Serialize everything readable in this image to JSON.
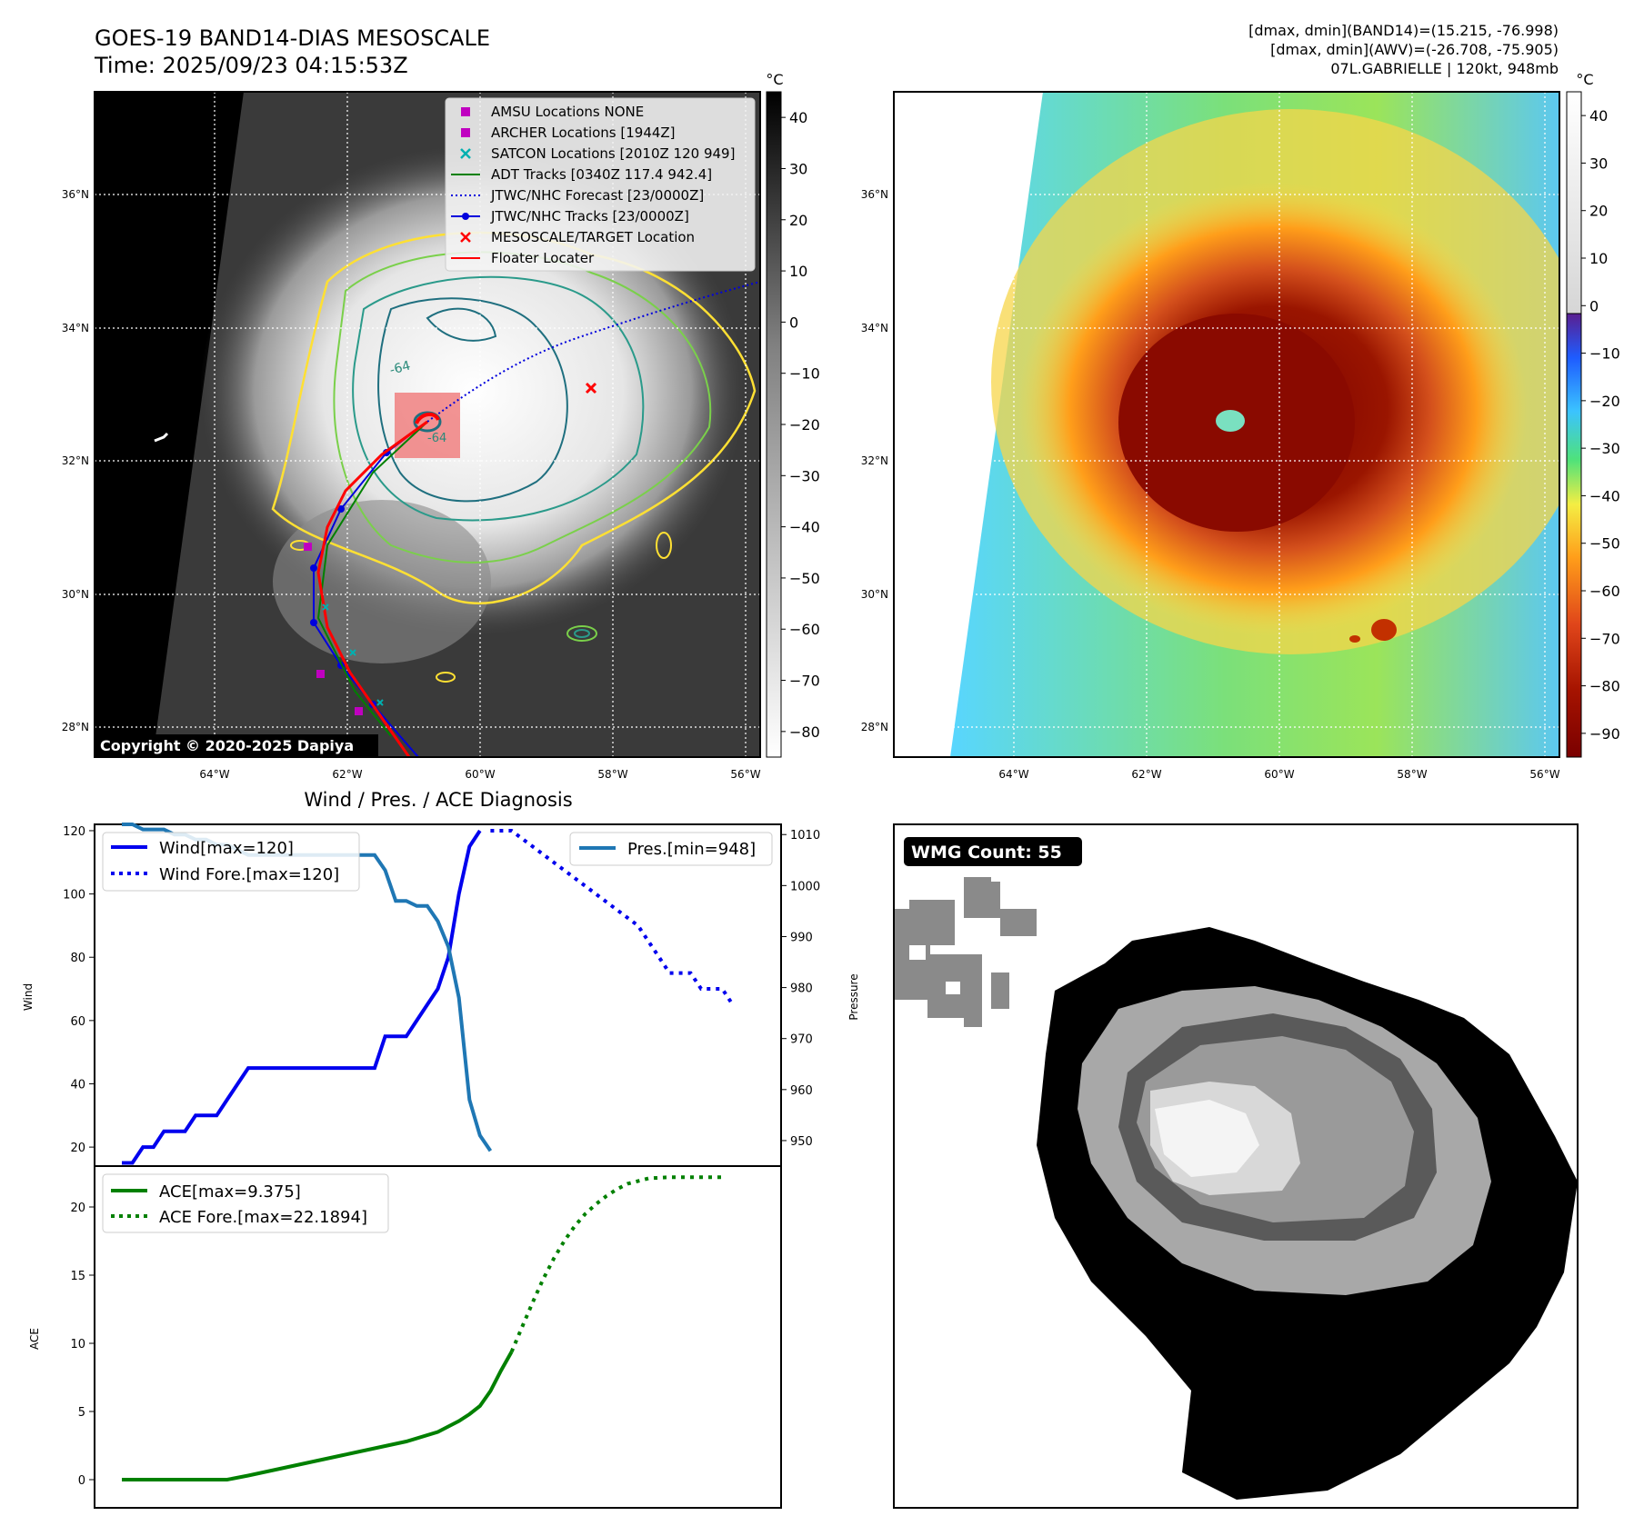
{
  "header": {
    "title": "GOES-19 BAND14-DIAS MESOSCALE",
    "time": "Time: 2025/09/23 04:15:53Z",
    "info_line1": "[dmax, dmin](BAND14)=(15.215, -76.998)",
    "info_line2": "[dmax, dmin](AWV)=(-26.708, -75.905)",
    "info_line3": "07L.GABRIELLE | 120kt, 948mb"
  },
  "copyright": "Copyright © 2020-2025 Dapiya",
  "map_axes": {
    "lon_labels": [
      "64°W",
      "62°W",
      "60°W",
      "58°W",
      "56°W"
    ],
    "lat_labels": [
      "36°N",
      "34°N",
      "32°N",
      "30°N",
      "28°N"
    ],
    "contour_labels": [
      "-64",
      "-64"
    ]
  },
  "legend_ir": [
    {
      "label": "AMSU Locations NONE",
      "marker": "square",
      "color": "#c000c0"
    },
    {
      "label": "ARCHER Locations [1944Z]",
      "marker": "square",
      "color": "#c000c0"
    },
    {
      "label": "SATCON Locations [2010Z 120 949]",
      "marker": "x",
      "color": "#00b0b0"
    },
    {
      "label": "ADT Tracks [0340Z 117.4 942.4]",
      "marker": "line",
      "color": "#008000"
    },
    {
      "label": "JTWC/NHC Forecast [23/0000Z]",
      "marker": "dotted",
      "color": "#0000dd"
    },
    {
      "label": "JTWC/NHC Tracks [23/0000Z]",
      "marker": "linedot",
      "color": "#0000dd"
    },
    {
      "label": "MESOSCALE/TARGET Location",
      "marker": "x",
      "color": "#ff0000"
    },
    {
      "label": "Floater Locater",
      "marker": "line",
      "color": "#ff0000"
    }
  ],
  "colorbar_ir": {
    "unit": "°C",
    "ticks": [
      "40",
      "30",
      "20",
      "10",
      "0",
      "−10",
      "−20",
      "−30",
      "−40",
      "−50",
      "−60",
      "−70",
      "−80"
    ]
  },
  "colorbar_awv": {
    "unit": "°C",
    "ticks": [
      "40",
      "30",
      "20",
      "10",
      "0",
      "−10",
      "−20",
      "−30",
      "−40",
      "−50",
      "−60",
      "−70",
      "−80",
      "−90"
    ]
  },
  "wmg": {
    "label": "WMG Count: 55"
  },
  "chart_data": [
    {
      "type": "line",
      "title": "Wind / Pres. / ACE Diagnosis",
      "ylabel": "Wind",
      "ylabel_right": "Pressure",
      "ylim": [
        14,
        122
      ],
      "ylim_right": [
        945,
        1012
      ],
      "yticks": [
        20,
        40,
        60,
        80,
        100,
        120
      ],
      "yticks_right": [
        950,
        960,
        970,
        980,
        990,
        1000,
        1010
      ],
      "xlim": [
        0,
        60
      ],
      "series": [
        {
          "name": "Wind[max=120]",
          "style": "solid",
          "color": "#0000ee",
          "axis": "left",
          "x": [
            0,
            1,
            2,
            3,
            4,
            5,
            6,
            7,
            8,
            9,
            10,
            11,
            12,
            13,
            14,
            15,
            16,
            17,
            18,
            19,
            20,
            21,
            22,
            23,
            24,
            25,
            26,
            27,
            28,
            29,
            30,
            31,
            32,
            33,
            34,
            35,
            36,
            37
          ],
          "y": [
            15,
            15,
            20,
            20,
            25,
            25,
            25,
            30,
            30,
            30,
            35,
            40,
            45,
            45,
            45,
            45,
            45,
            45,
            45,
            45,
            45,
            45,
            45,
            45,
            45,
            55,
            55,
            55,
            60,
            65,
            70,
            80,
            100,
            115,
            120,
            null,
            null,
            null
          ]
        },
        {
          "name": "Wind Fore.[max=120]",
          "style": "dotted",
          "color": "#0000ee",
          "axis": "left",
          "x": [
            35,
            37,
            39,
            41,
            43,
            45,
            47,
            49,
            50,
            51,
            52,
            53,
            54,
            55,
            56,
            57,
            58
          ],
          "y": [
            120,
            120,
            115,
            110,
            105,
            100,
            95,
            90,
            85,
            80,
            75,
            75,
            75,
            70,
            70,
            70,
            65
          ]
        },
        {
          "name": "Pres.[min=948]",
          "style": "solid",
          "color": "#1f77b4",
          "axis": "right",
          "x": [
            0,
            1,
            2,
            3,
            4,
            5,
            6,
            7,
            8,
            9,
            10,
            11,
            12,
            13,
            14,
            15,
            16,
            17,
            18,
            19,
            20,
            21,
            22,
            23,
            24,
            25,
            26,
            27,
            28,
            29,
            30,
            31,
            32,
            33,
            34,
            35
          ],
          "y": [
            1012,
            1012,
            1011,
            1011,
            1011,
            1010,
            1010,
            1009,
            1009,
            1008,
            1008,
            1007,
            1006,
            1006,
            1006,
            1006,
            1006,
            1006,
            1006,
            1006,
            1006,
            1006,
            1006,
            1006,
            1006,
            1003,
            997,
            997,
            996,
            996,
            993,
            988,
            978,
            958,
            951,
            948
          ]
        }
      ]
    },
    {
      "type": "line",
      "ylabel": "ACE",
      "ylim": [
        -1,
        23
      ],
      "yticks": [
        0,
        5,
        10,
        15,
        20
      ],
      "xlim": [
        0,
        60
      ],
      "series": [
        {
          "name": "ACE[max=9.375]",
          "style": "solid",
          "color": "#008000",
          "x": [
            0,
            3,
            6,
            9,
            10,
            12,
            15,
            18,
            21,
            24,
            27,
            30,
            31,
            32,
            33,
            34,
            35,
            36,
            37,
            38
          ],
          "y": [
            0,
            0,
            0,
            0,
            0,
            0.3,
            0.8,
            1.3,
            1.8,
            2.3,
            2.8,
            3.5,
            3.9,
            4.3,
            4.8,
            5.4,
            6.5,
            8.0,
            9.375,
            null
          ]
        },
        {
          "name": "ACE Fore.[max=22.1894]",
          "style": "dotted",
          "color": "#008000",
          "x": [
            37,
            38,
            39,
            40,
            41,
            42,
            43,
            44,
            45,
            46,
            47,
            48,
            50,
            52,
            54,
            56,
            57
          ],
          "y": [
            9.375,
            11.2,
            13.0,
            14.7,
            16.2,
            17.5,
            18.6,
            19.5,
            20.2,
            20.8,
            21.3,
            21.7,
            22.1,
            22.19,
            22.19,
            22.19,
            22.19
          ]
        }
      ]
    }
  ]
}
